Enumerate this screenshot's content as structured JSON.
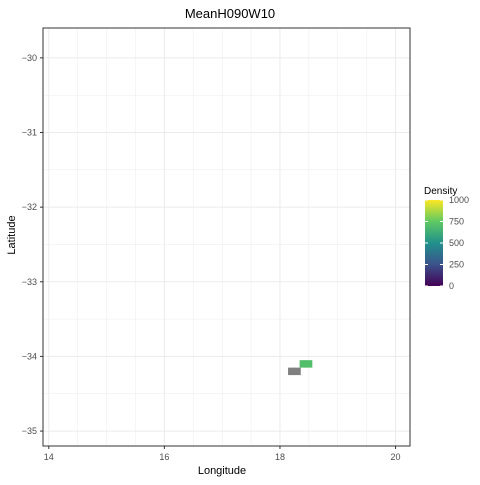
{
  "chart_data": {
    "type": "heatmap",
    "title": "MeanH090W10",
    "xlabel": "Longitude",
    "ylabel": "Latitude",
    "xlim": [
      13.9,
      20.25
    ],
    "ylim": [
      -35.2,
      -29.6
    ],
    "x_ticks": [
      14,
      16,
      18,
      20
    ],
    "y_ticks": [
      -30,
      -31,
      -32,
      -33,
      -34,
      -35
    ],
    "grid": true,
    "legend": {
      "title": "Density",
      "placement": "right",
      "range": [
        0,
        1000
      ],
      "ticks": [
        0,
        250,
        500,
        750,
        1000
      ],
      "colormap": [
        "#440154",
        "#3b528b",
        "#21918c",
        "#5ec962",
        "#fde725"
      ]
    },
    "cells": [
      {
        "lon": 18.4,
        "lat": -34.1,
        "density": 700
      },
      {
        "lon": 18.5,
        "lat": -34.1,
        "density": 700
      },
      {
        "lon": 18.3,
        "lat": -34.2,
        "density": null
      },
      {
        "lon": 18.2,
        "lat": -34.2,
        "density": null
      }
    ],
    "na_color": "#808080",
    "cell_size_deg": [
      0.12,
      0.1
    ]
  }
}
